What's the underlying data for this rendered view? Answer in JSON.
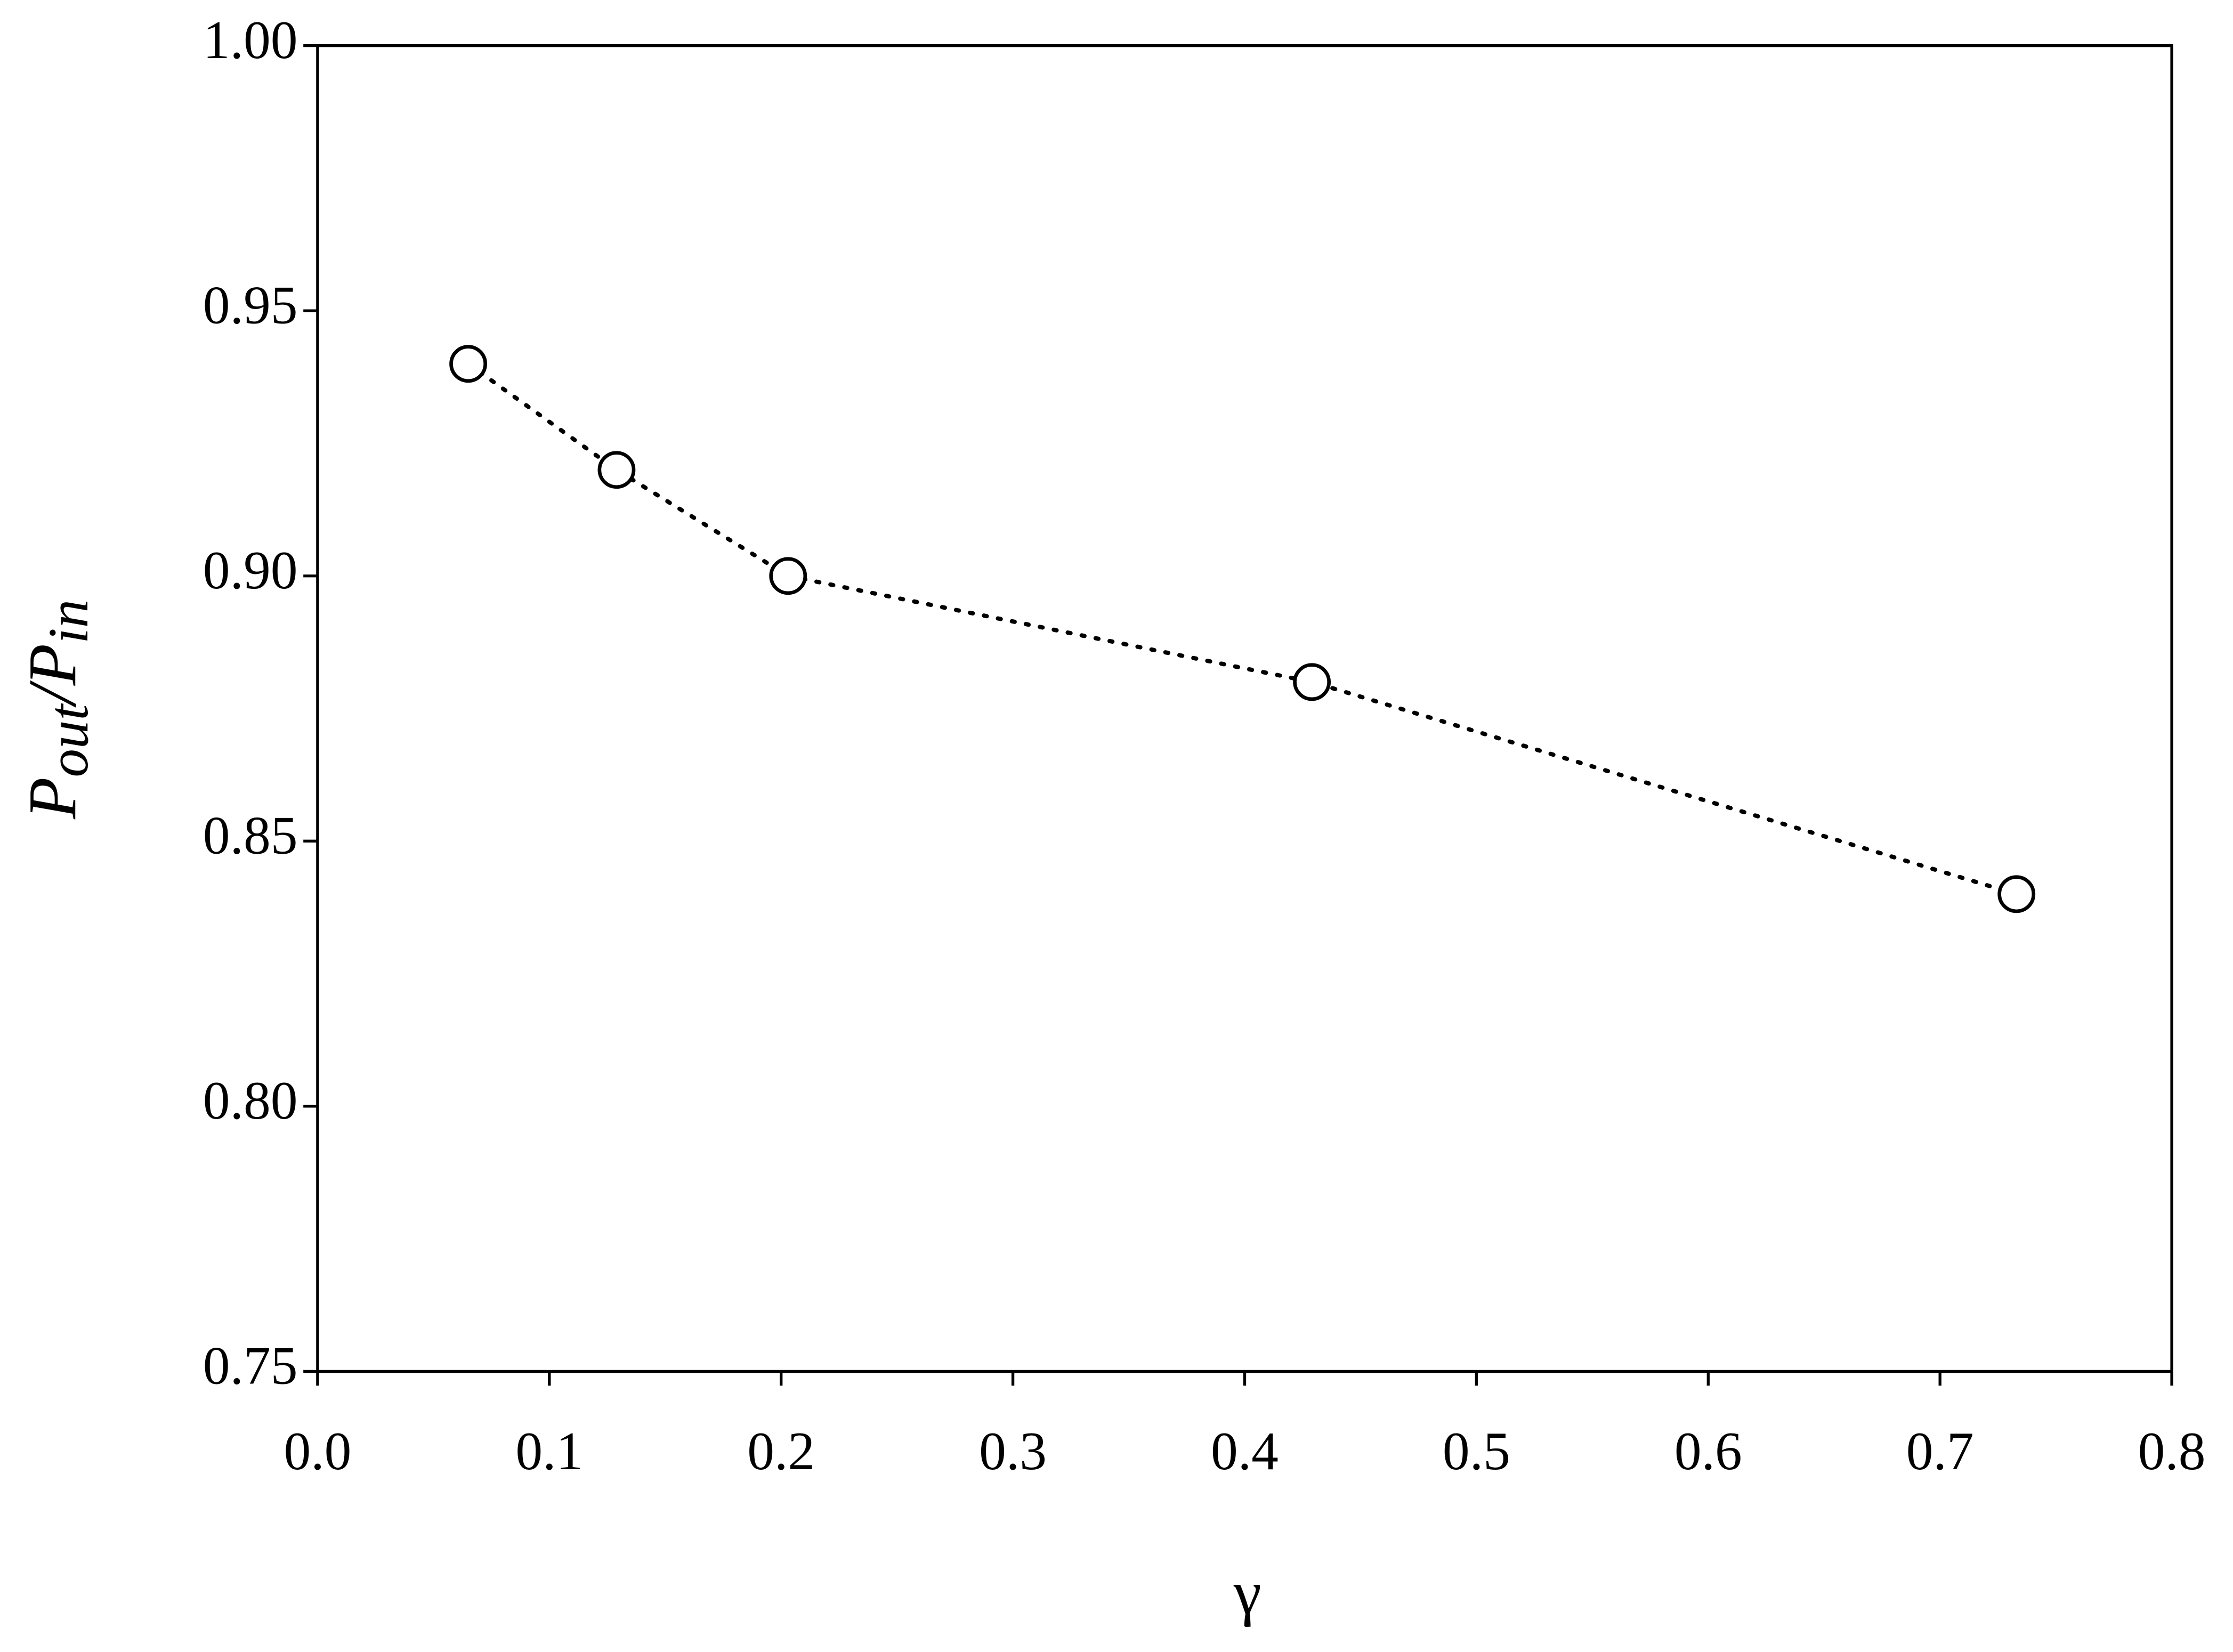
{
  "chart_data": {
    "type": "scatter",
    "xlabel": "γ",
    "ylabel": [
      "P",
      "out",
      "/P",
      "in"
    ],
    "x": [
      0.065,
      0.129,
      0.203,
      0.429,
      0.733
    ],
    "values": [
      0.94,
      0.92,
      0.9,
      0.88,
      0.84
    ],
    "color": "#000000",
    "line_style": "dotted",
    "xlim": [
      0,
      0.8
    ],
    "xticks": [
      {
        "value": 0,
        "label": "0.0"
      },
      0.1,
      0.2,
      0.3,
      0.4,
      0.5,
      0.6,
      0.7,
      0.8
    ],
    "ylim": [
      0.75,
      1.0
    ],
    "yticks": [
      0.75,
      {
        "value": 0.8,
        "label": "0.80"
      },
      0.85,
      {
        "value": 0.9,
        "label": "0.90"
      },
      0.95,
      {
        "value": 1.0,
        "label": "1.00"
      }
    ]
  }
}
